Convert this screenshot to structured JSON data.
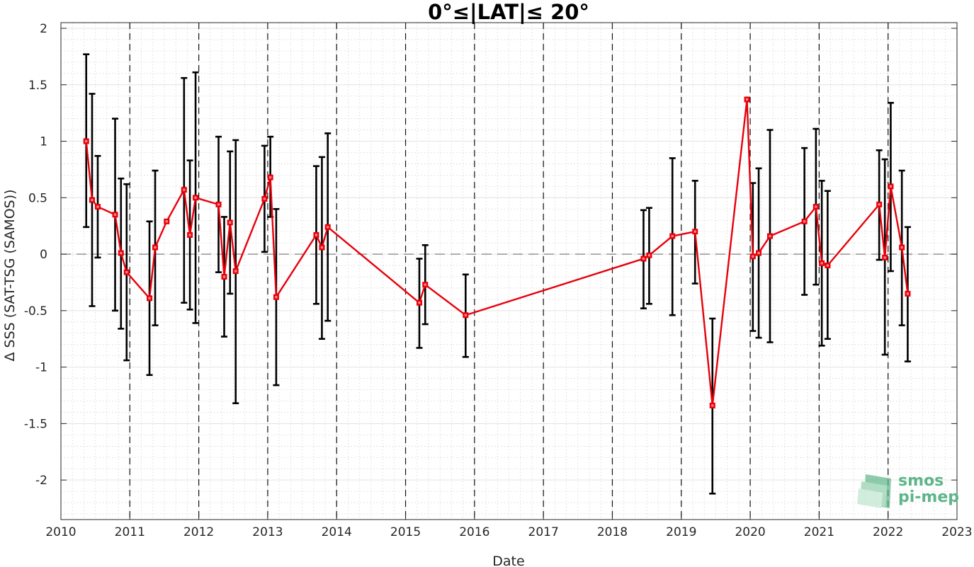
{
  "chart_data": {
    "type": "line",
    "title": "0°≤|LAT|≤ 20°",
    "xlabel": "Date",
    "ylabel": "Δ SSS (SAT-TSG (SAMOS))",
    "xlim": [
      "2010-01-01",
      "2023-01-01"
    ],
    "ylim": [
      -2.35,
      2.05
    ],
    "x_ticks": [
      "2010",
      "2011",
      "2012",
      "2013",
      "2014",
      "2015",
      "2016",
      "2017",
      "2018",
      "2019",
      "2020",
      "2021",
      "2022",
      "2023"
    ],
    "y_ticks": [
      2,
      1.5,
      1,
      0.5,
      0,
      -0.5,
      -1,
      -1.5,
      -2
    ],
    "y_tick_labels": [
      "2",
      "1.5",
      "1",
      "0.5",
      "0",
      "-0.5",
      "-1",
      "-1.5",
      "-2"
    ],
    "year_dividers": [
      "2011",
      "2012",
      "2013",
      "2014",
      "2015",
      "2016",
      "2017",
      "2018",
      "2019",
      "2020",
      "2021",
      "2022"
    ],
    "zero_line": 0,
    "grid": true,
    "minor_grid": true,
    "series_color": "#e8000b",
    "errorbar_color": "#000000",
    "series": [
      {
        "x": [
          "2010-05-15",
          "2010-06-15",
          "2010-07-15",
          "2010-10-15",
          "2010-11-15",
          "2010-12-15",
          "2011-04-15",
          "2011-05-15",
          "2011-07-15",
          "2011-10-15",
          "2011-11-15",
          "2011-12-15",
          "2012-04-15",
          "2012-05-15",
          "2012-06-15",
          "2012-07-15",
          "2012-12-15",
          "2013-01-15",
          "2013-02-15",
          "2013-09-15",
          "2013-10-15",
          "2013-11-15",
          "2015-03-15",
          "2015-04-15",
          "2015-11-15",
          "2018-06-15",
          "2018-07-15",
          "2018-11-15",
          "2019-03-15",
          "2019-06-15",
          "2019-12-15",
          "2020-01-15",
          "2020-02-15",
          "2020-04-15",
          "2020-10-15",
          "2020-12-15",
          "2021-01-15",
          "2021-02-15",
          "2021-11-15",
          "2021-12-15",
          "2022-01-15",
          "2022-03-15",
          "2022-04-15"
        ],
        "y": [
          1.0,
          0.48,
          0.42,
          0.35,
          0.01,
          -0.16,
          -0.39,
          0.06,
          0.29,
          0.57,
          0.17,
          0.5,
          0.44,
          -0.2,
          0.28,
          -0.15,
          0.49,
          0.68,
          -0.38,
          0.17,
          0.06,
          0.24,
          -0.43,
          -0.27,
          -0.54,
          -0.04,
          -0.01,
          0.16,
          0.2,
          -1.34,
          1.37,
          -0.02,
          0.01,
          0.16,
          0.29,
          0.42,
          -0.08,
          -0.1,
          0.44,
          -0.03,
          0.6,
          0.06,
          -0.35
        ],
        "err_low": [
          0.24,
          -0.46,
          -0.03,
          -0.5,
          -0.66,
          -0.94,
          -1.07,
          -0.63,
          0.29,
          -0.43,
          -0.49,
          -0.61,
          -0.16,
          -0.73,
          -0.35,
          -1.32,
          0.02,
          0.33,
          -1.16,
          -0.44,
          -0.75,
          -0.59,
          -0.83,
          -0.62,
          -0.91,
          -0.48,
          -0.44,
          -0.54,
          -0.26,
          -2.12,
          1.37,
          -0.68,
          -0.74,
          -0.78,
          -0.36,
          -0.27,
          -0.81,
          -0.75,
          -0.05,
          -0.89,
          -0.15,
          -0.63,
          -0.95
        ],
        "err_high": [
          1.77,
          1.42,
          0.87,
          1.2,
          0.67,
          0.62,
          0.29,
          0.74,
          0.29,
          1.56,
          0.83,
          1.61,
          1.04,
          0.33,
          0.91,
          1.01,
          0.96,
          1.04,
          0.4,
          0.78,
          0.86,
          1.07,
          -0.04,
          0.08,
          -0.18,
          0.39,
          0.41,
          0.85,
          0.65,
          -0.57,
          1.37,
          0.63,
          0.76,
          1.1,
          0.94,
          1.11,
          0.65,
          0.56,
          0.92,
          0.84,
          1.34,
          0.74,
          0.24
        ]
      }
    ]
  },
  "logo": {
    "line1": "smos",
    "line2": "pi-mep"
  }
}
